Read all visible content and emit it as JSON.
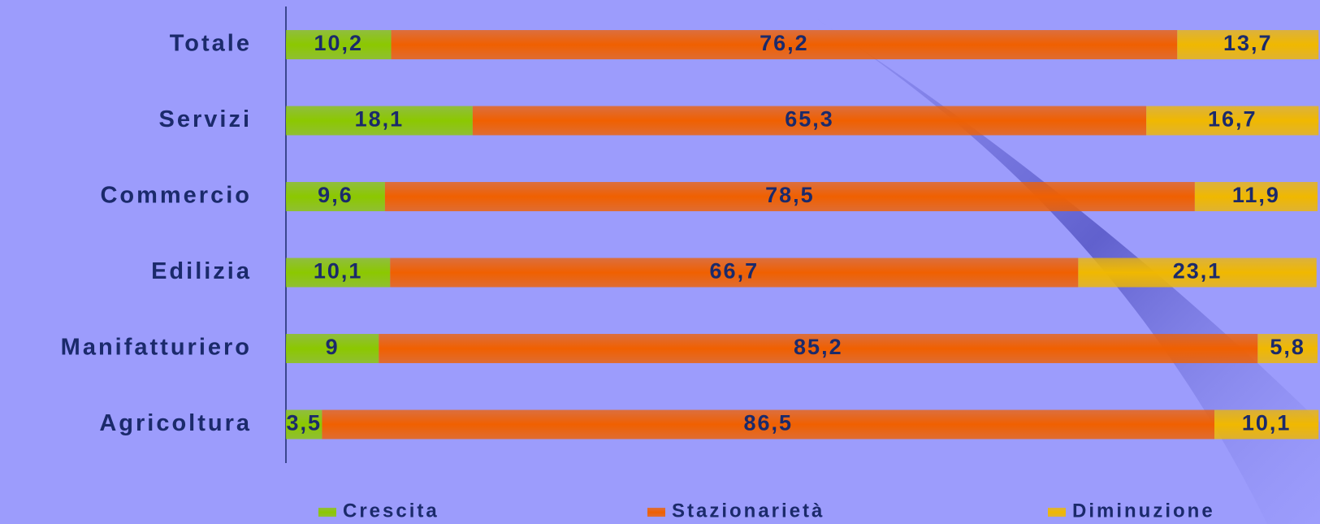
{
  "chart_data": {
    "type": "stacked-bar-horizontal",
    "categories": [
      "Totale",
      "Servizi",
      "Commercio",
      "Edilizia",
      "Manifatturiero",
      "Agricoltura"
    ],
    "xlim": [
      0,
      100
    ],
    "legend": "bottom",
    "series": [
      {
        "name": "Crescita",
        "color": "#8cc800",
        "values": [
          10.2,
          18.1,
          9.6,
          10.1,
          9,
          3.5
        ],
        "value_labels": [
          "10,2",
          "18,1",
          "9,6",
          "10,1",
          "9",
          "3,5"
        ]
      },
      {
        "name": "Stazionarietà",
        "color": "#f06000",
        "values": [
          76.2,
          65.3,
          78.5,
          66.7,
          85.2,
          86.5
        ],
        "value_labels": [
          "76,2",
          "65,3",
          "78,5",
          "66,7",
          "85,2",
          "86,5"
        ]
      },
      {
        "name": "Diminuzione",
        "color": "#f0b800",
        "values": [
          13.7,
          16.7,
          11.9,
          23.1,
          5.8,
          10.1
        ],
        "value_labels": [
          "13,7",
          "16,7",
          "11,9",
          "23,1",
          "5,8",
          "10,1"
        ]
      }
    ]
  }
}
